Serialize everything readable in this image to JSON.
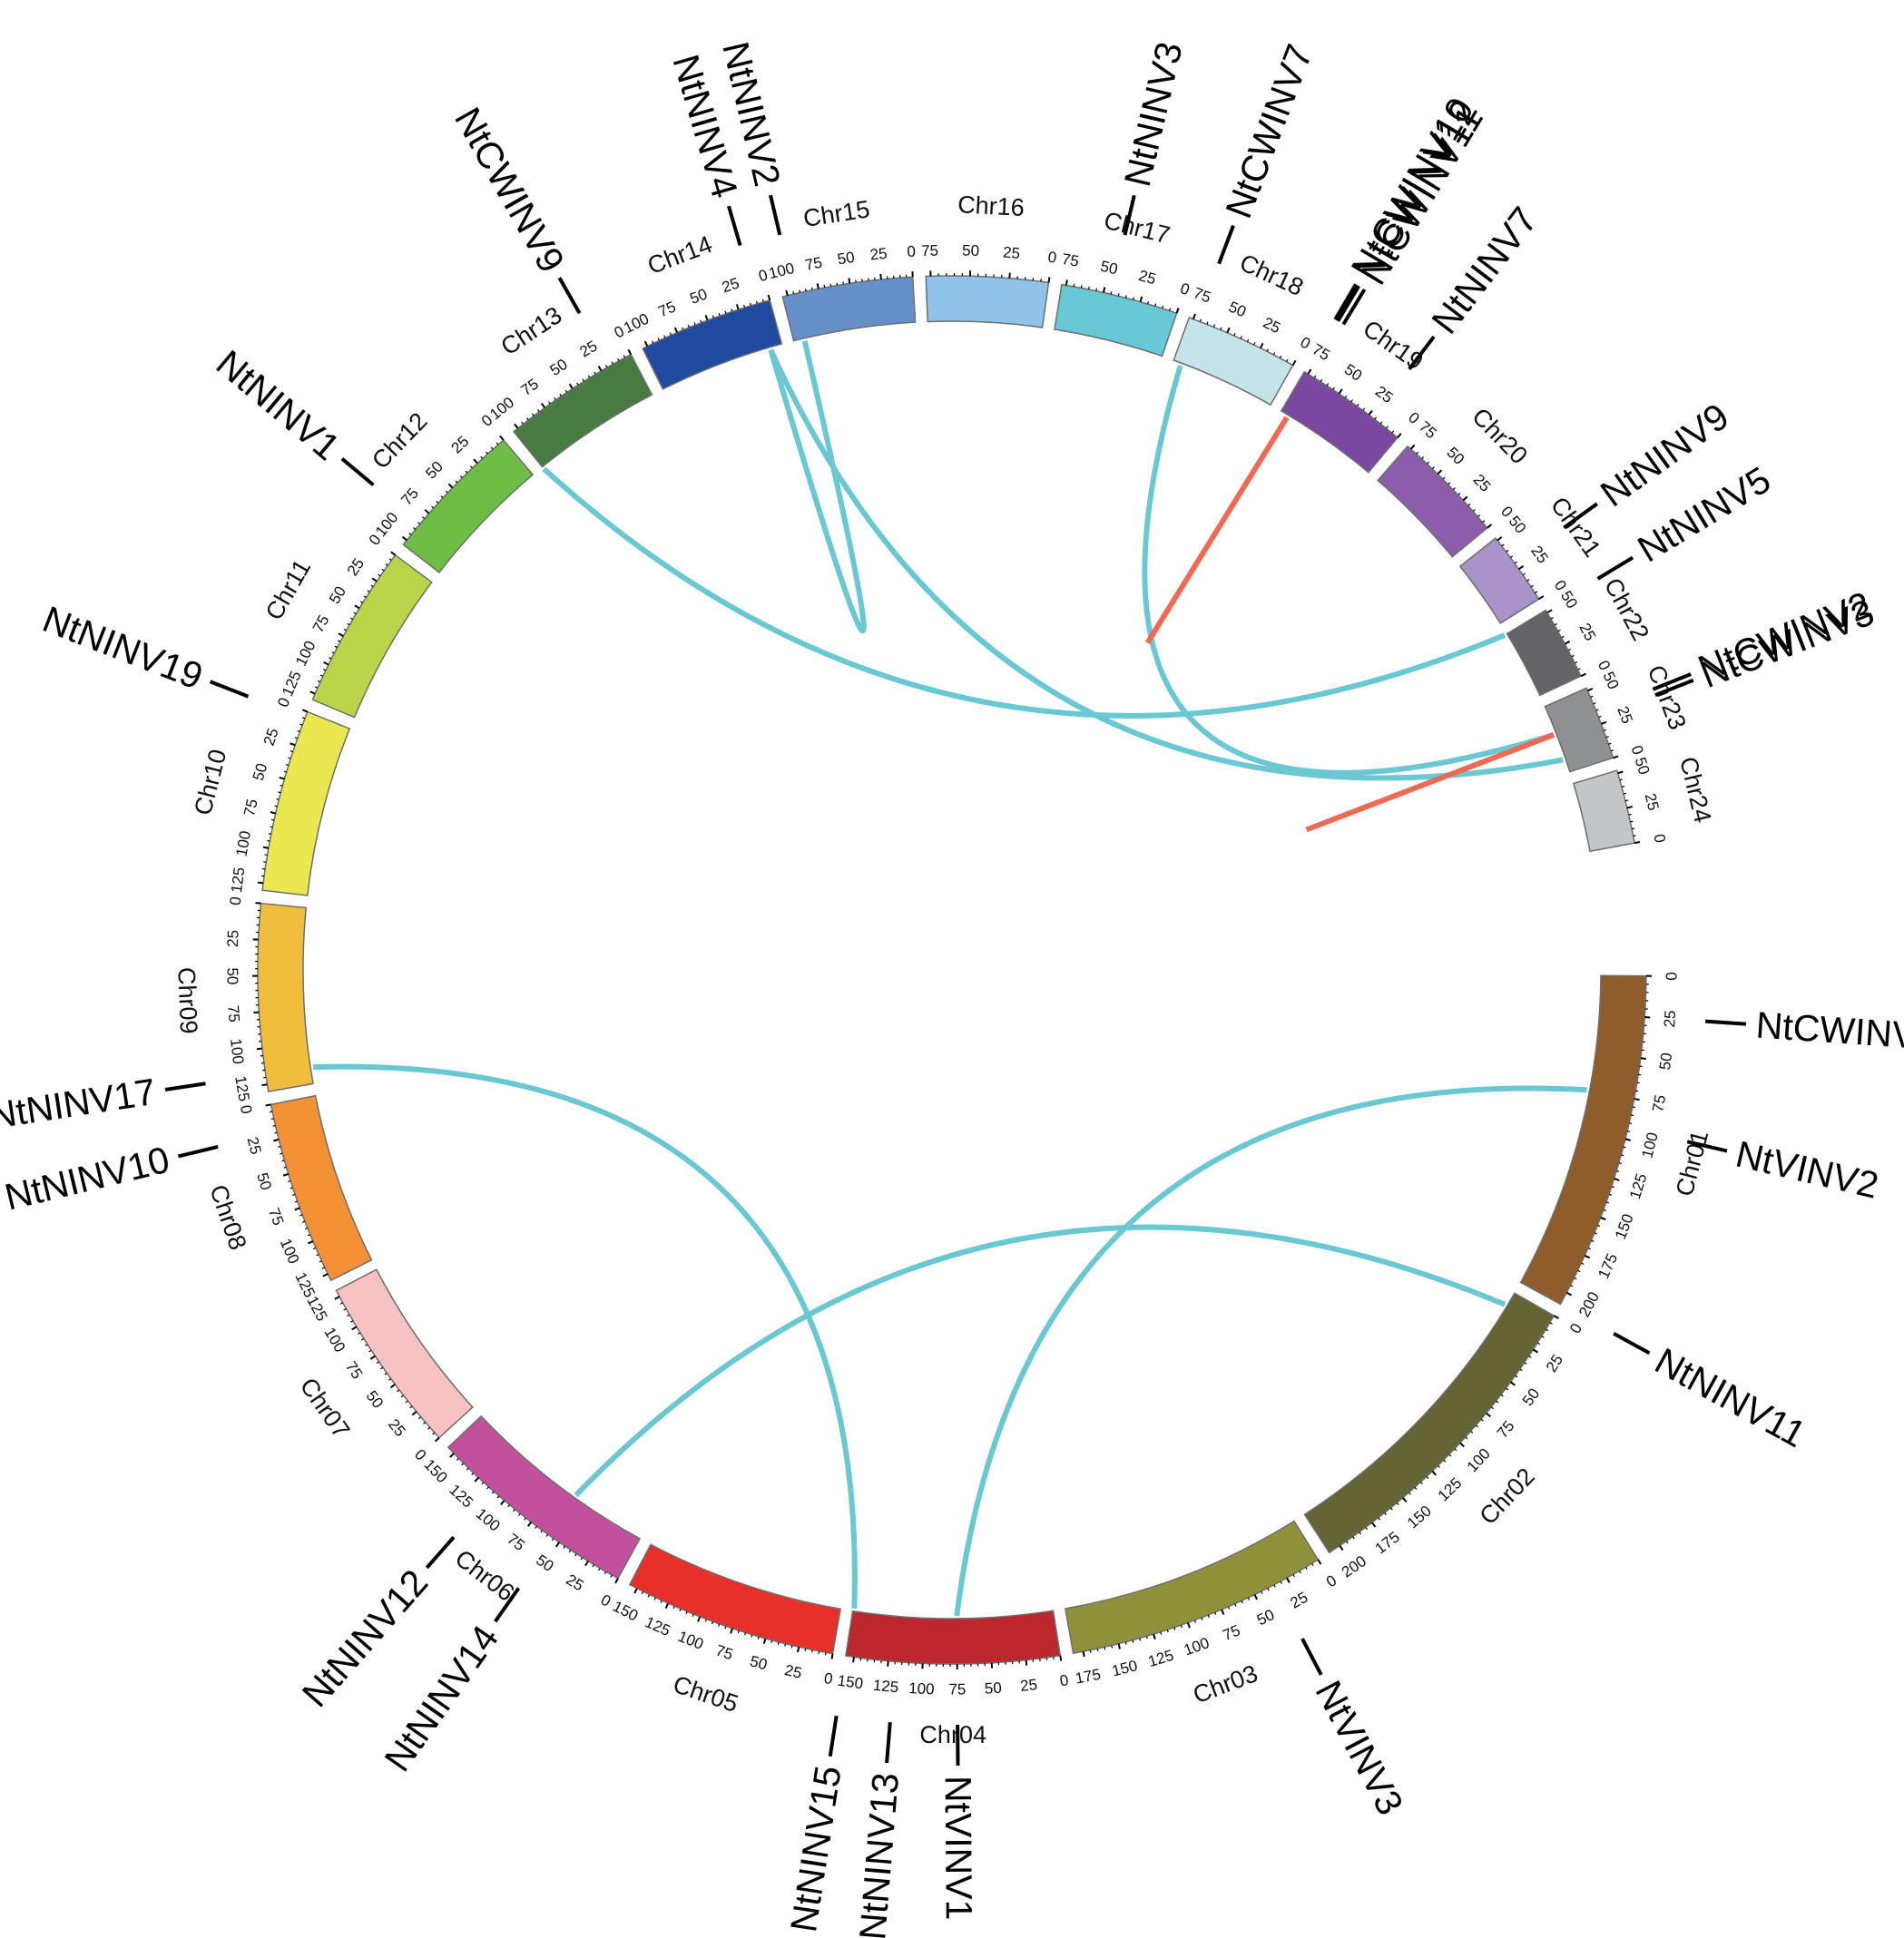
{
  "chromosomes": [
    {
      "name": "Chr01",
      "ticks": [
        "0",
        "25",
        "50",
        "75",
        "100",
        "125",
        "150",
        "175",
        "200"
      ],
      "color": "#8f5d2c",
      "orientation": "cw"
    },
    {
      "name": "Chr02",
      "ticks": [
        "0",
        "25",
        "50",
        "75",
        "100",
        "125",
        "150",
        "175",
        "200"
      ],
      "color": "#646434",
      "orientation": "cw"
    },
    {
      "name": "Chr03",
      "ticks": [
        "0",
        "25",
        "50",
        "75",
        "100",
        "125",
        "150",
        "175"
      ],
      "color": "#8f903a",
      "orientation": "cw"
    },
    {
      "name": "Chr04",
      "ticks": [
        "0",
        "25",
        "50",
        "75",
        "100",
        "125",
        "150"
      ],
      "color": "#bc262c",
      "orientation": "cw"
    },
    {
      "name": "Chr05",
      "ticks": [
        "0",
        "25",
        "50",
        "75",
        "100",
        "125",
        "150"
      ],
      "color": "#e8302a",
      "orientation": "cw"
    },
    {
      "name": "Chr06",
      "ticks": [
        "0",
        "25",
        "50",
        "75",
        "100",
        "125",
        "150"
      ],
      "color": "#c2509d",
      "orientation": "cw"
    },
    {
      "name": "Chr07",
      "ticks": [
        "0",
        "25",
        "50",
        "75",
        "100",
        "125"
      ],
      "color": "#f8c1c2",
      "orientation": "cw"
    },
    {
      "name": "Chr08",
      "ticks": [
        "0",
        "25",
        "50",
        "75",
        "100",
        "125"
      ],
      "color": "#f39134",
      "orientation": "ccw"
    },
    {
      "name": "Chr09",
      "ticks": [
        "0",
        "25",
        "50",
        "75",
        "100",
        "125"
      ],
      "color": "#f0bd3c",
      "orientation": "ccw"
    },
    {
      "name": "Chr10",
      "ticks": [
        "0",
        "25",
        "50",
        "75",
        "100",
        "125"
      ],
      "color": "#eae84f",
      "orientation": "ccw"
    },
    {
      "name": "Chr11",
      "ticks": [
        "0",
        "25",
        "50",
        "75",
        "100",
        "125"
      ],
      "color": "#bbd54a",
      "orientation": "ccw"
    },
    {
      "name": "Chr12",
      "ticks": [
        "0",
        "25",
        "50",
        "75",
        "100"
      ],
      "color": "#6ebe45",
      "orientation": "ccw"
    },
    {
      "name": "Chr13",
      "ticks": [
        "0",
        "25",
        "50",
        "75",
        "100"
      ],
      "color": "#477b42",
      "orientation": "ccw"
    },
    {
      "name": "Chr14",
      "ticks": [
        "0",
        "25",
        "50",
        "75",
        "100"
      ],
      "color": "#1f4a9e",
      "orientation": "ccw"
    },
    {
      "name": "Chr15",
      "ticks": [
        "0",
        "25",
        "50",
        "75",
        "100"
      ],
      "color": "#6690ca",
      "orientation": "ccw"
    },
    {
      "name": "Chr16",
      "ticks": [
        "0",
        "25",
        "50",
        "75"
      ],
      "color": "#91c3ea",
      "orientation": "ccw"
    },
    {
      "name": "Chr17",
      "ticks": [
        "0",
        "25",
        "50",
        "75"
      ],
      "color": "#67c9d3",
      "orientation": "ccw"
    },
    {
      "name": "Chr18",
      "ticks": [
        "0",
        "25",
        "50",
        "75"
      ],
      "color": "#c5e4e9",
      "orientation": "ccw"
    },
    {
      "name": "Chr19",
      "ticks": [
        "0",
        "25",
        "50",
        "75"
      ],
      "color": "#7a47a1",
      "orientation": "ccw"
    },
    {
      "name": "Chr20",
      "ticks": [
        "0",
        "25",
        "50",
        "75"
      ],
      "color": "#8b5daa",
      "orientation": "ccw"
    },
    {
      "name": "Chr21",
      "ticks": [
        "0",
        "25",
        "50"
      ],
      "color": "#a993c8",
      "orientation": "ccw"
    },
    {
      "name": "Chr22",
      "ticks": [
        "0",
        "25",
        "50"
      ],
      "color": "#646466",
      "orientation": "ccw"
    },
    {
      "name": "Chr23",
      "ticks": [
        "0",
        "25",
        "50"
      ],
      "color": "#8f9092",
      "orientation": "ccw"
    },
    {
      "name": "Chr24",
      "ticks": [
        "0",
        "25",
        "50"
      ],
      "color": "#c4c5c7",
      "orientation": "ccw"
    }
  ],
  "genes": [
    {
      "name": "NtCWINV1",
      "chr": "Chr01",
      "pos": 25
    },
    {
      "name": "NtVINV2",
      "chr": "Chr01",
      "pos": 93
    },
    {
      "name": "NtNINV11",
      "chr": "Chr01",
      "pos": 212
    },
    {
      "name": "NtVINV3",
      "chr": "Chr03",
      "pos": 35
    },
    {
      "name": "NtVINV1",
      "chr": "Chr04",
      "pos": 75
    },
    {
      "name": "NtNINV13",
      "chr": "Chr04",
      "pos": 120
    },
    {
      "name": "NtNINV15",
      "chr": "Chr04",
      "pos": 157
    },
    {
      "name": "NtNINV14",
      "chr": "Chr06",
      "pos": 55
    },
    {
      "name": "NtNINV12",
      "chr": "Chr06",
      "pos": 110
    },
    {
      "name": "NtNINV10",
      "chr": "Chr08",
      "pos": 20
    },
    {
      "name": "NtNINV17",
      "chr": "Chr09",
      "pos": 118
    },
    {
      "name": "NtNINV19",
      "chr": "Chr10",
      "pos": 5
    },
    {
      "name": "NtNINV1",
      "chr": "Chr12",
      "pos": 85
    },
    {
      "name": "NtCWINV9",
      "chr": "Chr13",
      "pos": 18
    },
    {
      "name": "NtNINV4",
      "chr": "Chr14",
      "pos": 10
    },
    {
      "name": "NtNINV2",
      "chr": "Chr15",
      "pos": 95
    },
    {
      "name": "NtNINV3",
      "chr": "Chr17",
      "pos": 45
    },
    {
      "name": "NtCWINV7",
      "chr": "Chr18",
      "pos": 72
    },
    {
      "name": "NtNINV7",
      "chr": "Chr19",
      "pos": 22
    },
    {
      "name": "NtCWINV11",
      "chr": "Chr19",
      "pos": 72
    },
    {
      "name": "NtCWINV12",
      "chr": "Chr19",
      "pos": 76
    },
    {
      "name": "NtCWINV10",
      "chr": "Chr19",
      "pos": 80
    },
    {
      "name": "NtNINV9",
      "chr": "Chr21",
      "pos": 30
    },
    {
      "name": "NtNINV5",
      "chr": "Chr22",
      "pos": 55
    },
    {
      "name": "NtCWINV3",
      "chr": "Chr23",
      "pos": 30
    },
    {
      "name": "NtCWINV2",
      "chr": "Chr23",
      "pos": 34
    }
  ],
  "links": [
    {
      "from": {
        "chr": "Chr01",
        "pos": 75
      },
      "to": {
        "chr": "Chr04",
        "pos": 75
      },
      "color": "#6ac8d2",
      "kind": "segmental"
    },
    {
      "from": {
        "chr": "Chr02",
        "pos": 10
      },
      "to": {
        "chr": "Chr06",
        "pos": 60
      },
      "color": "#6ac8d2",
      "kind": "segmental"
    },
    {
      "from": {
        "chr": "Chr04",
        "pos": 155
      },
      "to": {
        "chr": "Chr09",
        "pos": 118
      },
      "color": "#6ac8d2",
      "kind": "segmental"
    },
    {
      "from": {
        "chr": "Chr18",
        "pos": 72
      },
      "to": {
        "chr": "Chr23",
        "pos": 30
      },
      "color": "#6ac8d2",
      "kind": "segmental"
    },
    {
      "from": {
        "chr": "Chr23",
        "pos": 10
      },
      "to": {
        "chr": "Chr14",
        "pos": 10
      },
      "color": "#6ac8d2",
      "kind": "segmental"
    },
    {
      "from": {
        "chr": "Chr22",
        "pos": 55
      },
      "to": {
        "chr": "Chr13",
        "pos": 115
      },
      "color": "#6ac8d2",
      "kind": "segmental"
    },
    {
      "from": {
        "chr": "Chr15",
        "pos": 95
      },
      "to": {
        "chr": "Chr14",
        "pos": 10
      },
      "color": "#6ac8d2",
      "kind": "segmental"
    },
    {
      "from": {
        "chr": "Chr19",
        "pos": 72
      },
      "to": {
        "chr": "Chr19",
        "pos": 80
      },
      "color": "#ef6a55",
      "kind": "tandem"
    },
    {
      "from": {
        "chr": "Chr23",
        "pos": 30
      },
      "to": {
        "chr": "Chr23",
        "pos": 34
      },
      "color": "#ef6a55",
      "kind": "tandem"
    }
  ]
}
